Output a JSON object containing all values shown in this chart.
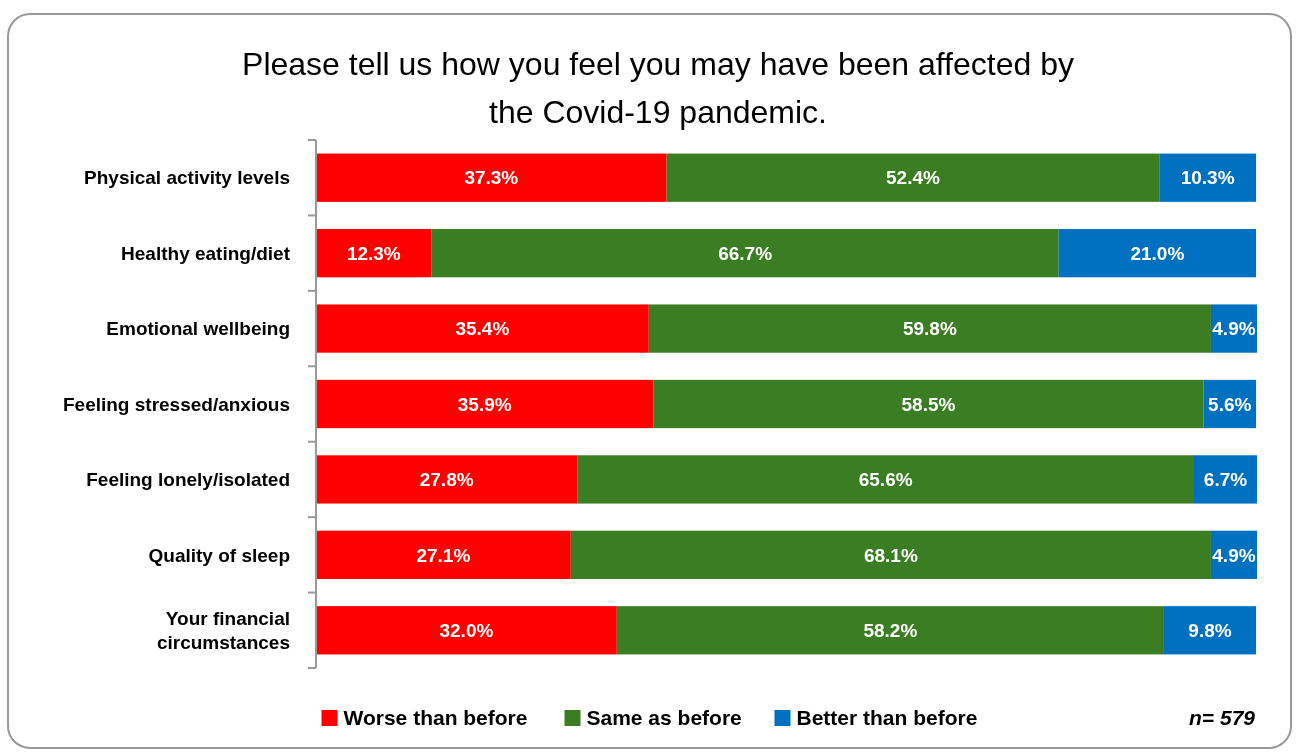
{
  "chart_data": {
    "type": "bar",
    "orientation": "horizontal",
    "stacked": true,
    "title": "Please tell us how you feel you may have been affected by the Covid-19 pandemic.",
    "categories": [
      "Physical activity levels",
      "Healthy eating/diet",
      "Emotional wellbeing",
      "Feeling stressed/anxious",
      "Feeling lonely/isolated",
      "Quality of sleep",
      "Your financial circumstances"
    ],
    "series": [
      {
        "name": "Worse than before",
        "color": "#ff0000",
        "values": [
          37.3,
          12.3,
          35.4,
          35.9,
          27.8,
          27.1,
          32.0
        ],
        "value_labels": [
          "37.3%",
          "12.3%",
          "35.4%",
          "35.9%",
          "27.8%",
          "27.1%",
          "32.0%"
        ]
      },
      {
        "name": "Same as before",
        "color": "#3a7d22",
        "values": [
          52.4,
          66.7,
          59.8,
          58.5,
          65.6,
          68.1,
          58.2
        ],
        "value_labels": [
          "52.4%",
          "66.7%",
          "59.8%",
          "58.5%",
          "65.6%",
          "68.1%",
          "58.2%"
        ]
      },
      {
        "name": "Better than before",
        "color": "#0070c0",
        "values": [
          10.3,
          21.0,
          4.9,
          5.6,
          6.7,
          4.9,
          9.8
        ],
        "value_labels": [
          "10.3%",
          "21.0%",
          "4.9%",
          "5.6%",
          "6.7%",
          "4.9%",
          "9.8%"
        ]
      }
    ],
    "legend": "bottom",
    "annotations": [
      {
        "text": "n= 579"
      }
    ]
  }
}
